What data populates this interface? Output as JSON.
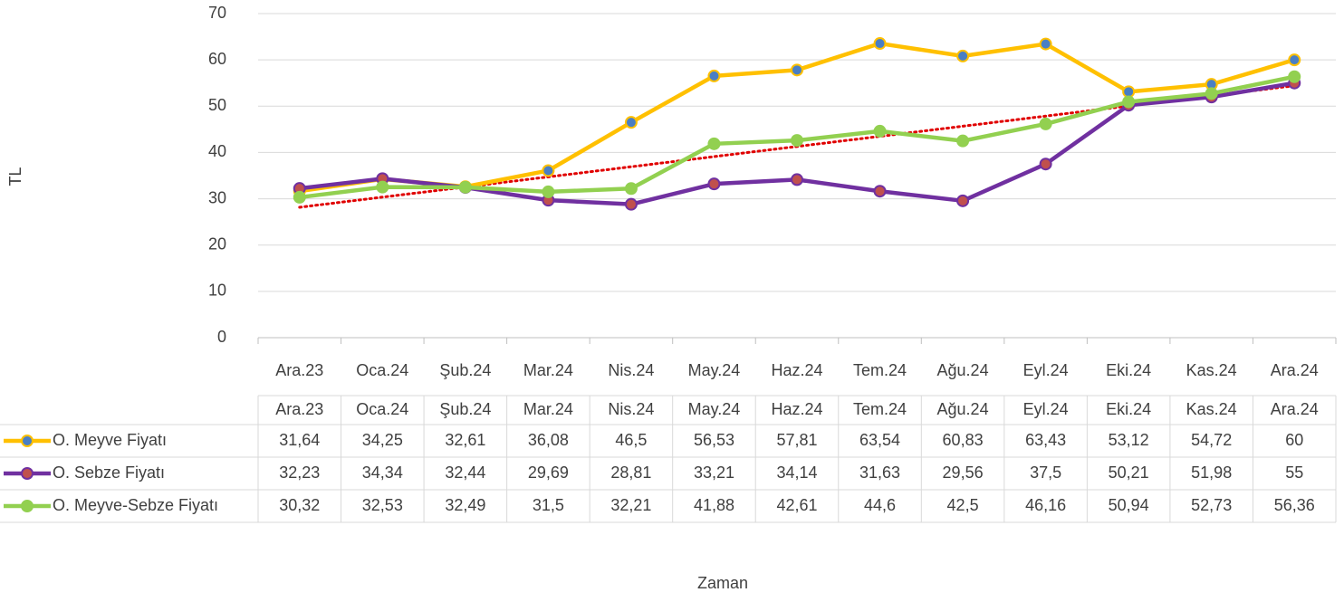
{
  "chart_data": {
    "type": "line",
    "x_label": "Zaman",
    "y_label": "TL",
    "categories": [
      "Ara.23",
      "Oca.24",
      "Şub.24",
      "Mar.24",
      "Nis.24",
      "May.24",
      "Haz.24",
      "Tem.24",
      "Ağu.24",
      "Eyl.24",
      "Eki.24",
      "Kas.24",
      "Ara.24"
    ],
    "series": [
      {
        "name": "O. Meyve Fiyatı",
        "color": "#ffc000",
        "marker_color": "#4a7fc4",
        "values": [
          31.64,
          34.25,
          32.61,
          36.08,
          46.5,
          56.53,
          57.81,
          63.54,
          60.83,
          63.43,
          53.12,
          54.72,
          60
        ],
        "value_labels": [
          "31,64",
          "34,25",
          "32,61",
          "36,08",
          "46,5",
          "56,53",
          "57,81",
          "63,54",
          "60,83",
          "63,43",
          "53,12",
          "54,72",
          "60"
        ]
      },
      {
        "name": "O. Sebze Fiyatı",
        "color": "#7030a0",
        "marker_color": "#c0504d",
        "values": [
          32.23,
          34.34,
          32.44,
          29.69,
          28.81,
          33.21,
          34.14,
          31.63,
          29.56,
          37.5,
          50.21,
          51.98,
          55
        ],
        "value_labels": [
          "32,23",
          "34,34",
          "32,44",
          "29,69",
          "28,81",
          "33,21",
          "34,14",
          "31,63",
          "29,56",
          "37,5",
          "50,21",
          "51,98",
          "55"
        ]
      },
      {
        "name": "O. Meyve-Sebze Fiyatı",
        "color": "#92d050",
        "marker_color": "#92d050",
        "values": [
          30.32,
          32.53,
          32.49,
          31.5,
          32.21,
          41.88,
          42.61,
          44.6,
          42.5,
          46.16,
          50.94,
          52.73,
          56.36
        ],
        "value_labels": [
          "30,32",
          "32,53",
          "32,49",
          "31,5",
          "32,21",
          "41,88",
          "42,61",
          "44,6",
          "42,5",
          "46,16",
          "50,94",
          "52,73",
          "56,36"
        ]
      }
    ],
    "trendline": {
      "series_index": 2,
      "color": "#e00000"
    },
    "ylim": [
      0,
      70
    ],
    "yticks": [
      0,
      10,
      20,
      30,
      40,
      50,
      60,
      70
    ],
    "grid": true
  }
}
